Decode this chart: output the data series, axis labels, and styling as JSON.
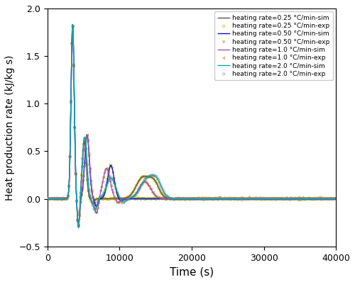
{
  "xlabel": "Time (s)",
  "ylabel": "Heat production rate (kJ/kg s)",
  "xlim": [
    0,
    40000
  ],
  "ylim": [
    -0.5,
    2.0
  ],
  "yticks": [
    -0.5,
    0.0,
    0.5,
    1.0,
    1.5,
    2.0
  ],
  "xticks": [
    0,
    10000,
    20000,
    30000,
    40000
  ],
  "sim_colors": {
    "r025": "#555555",
    "r050": "#1111cc",
    "r10": "#9955bb",
    "r20": "#00aaaa"
  },
  "exp_colors": {
    "r025": "#ccaa00",
    "r050": "#88aa22",
    "r10": "#cc8833",
    "r20": "#999999"
  },
  "legend_labels": [
    "heating rate=0.25 °C/min-sim",
    "heating rate=0.25 °C/min-exp",
    "heating rate=0.50 °C/min-sim",
    "heating rate=0.50 °C/min-exp",
    "heating rate=1.0 °C/min-sim",
    "heating rate=1.0 °C/min-exp",
    "heating rate=2.0 °C/min-sim",
    "heating rate=2.0 °C/min-exp"
  ]
}
